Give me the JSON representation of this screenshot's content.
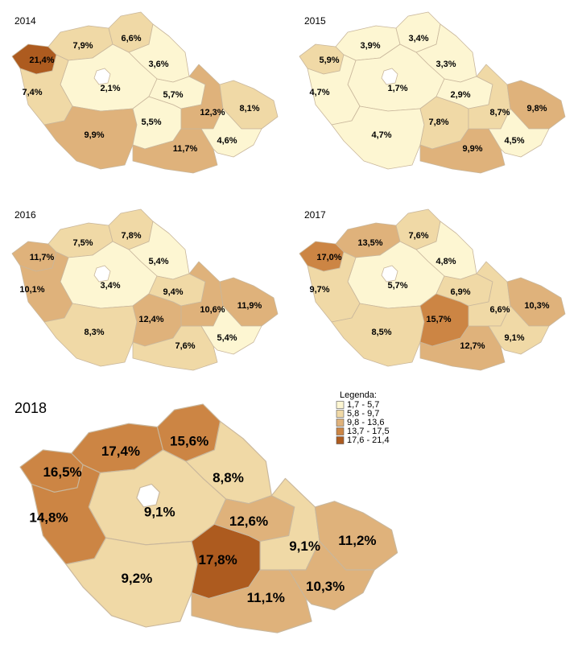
{
  "maps": [
    {
      "year": "2014",
      "regions": [
        {
          "label": "21,4%",
          "color": "#ad5b1f"
        },
        {
          "label": "7,9%",
          "color": "#f0d9a6"
        },
        {
          "label": "6,6%",
          "color": "#f0d9a6"
        },
        {
          "label": "3,6%",
          "color": "#fdf6d2"
        },
        {
          "label": "2,1%",
          "color": "#fdf6d2"
        },
        {
          "label": "7,4%",
          "color": "#f0d9a6"
        },
        {
          "label": "9,9%",
          "color": "#dfb27b"
        },
        {
          "label": "5,5%",
          "color": "#fdf6d2"
        },
        {
          "label": "5,7%",
          "color": "#fdf6d2"
        },
        {
          "label": "11,7%",
          "color": "#dfb27b"
        },
        {
          "label": "12,3%",
          "color": "#dfb27b"
        },
        {
          "label": "8,1%",
          "color": "#f0d9a6"
        },
        {
          "label": "4,6%",
          "color": "#fdf6d2"
        }
      ]
    },
    {
      "year": "2015",
      "regions": [
        {
          "label": "5,9%",
          "color": "#f0d9a6"
        },
        {
          "label": "3,9%",
          "color": "#fdf6d2"
        },
        {
          "label": "3,4%",
          "color": "#fdf6d2"
        },
        {
          "label": "3,3%",
          "color": "#fdf6d2"
        },
        {
          "label": "1,7%",
          "color": "#fdf6d2"
        },
        {
          "label": "4,7%",
          "color": "#fdf6d2"
        },
        {
          "label": "4,7%",
          "color": "#fdf6d2"
        },
        {
          "label": "7,8%",
          "color": "#f0d9a6"
        },
        {
          "label": "2,9%",
          "color": "#fdf6d2"
        },
        {
          "label": "9,9%",
          "color": "#dfb27b"
        },
        {
          "label": "8,7%",
          "color": "#f0d9a6"
        },
        {
          "label": "9,8%",
          "color": "#dfb27b"
        },
        {
          "label": "4,5%",
          "color": "#fdf6d2"
        }
      ]
    },
    {
      "year": "2016",
      "regions": [
        {
          "label": "11,7%",
          "color": "#dfb27b"
        },
        {
          "label": "7,5%",
          "color": "#f0d9a6"
        },
        {
          "label": "7,8%",
          "color": "#f0d9a6"
        },
        {
          "label": "5,4%",
          "color": "#fdf6d2"
        },
        {
          "label": "3,4%",
          "color": "#fdf6d2"
        },
        {
          "label": "10,1%",
          "color": "#dfb27b"
        },
        {
          "label": "8,3%",
          "color": "#f0d9a6"
        },
        {
          "label": "12,4%",
          "color": "#dfb27b"
        },
        {
          "label": "9,4%",
          "color": "#f0d9a6"
        },
        {
          "label": "7,6%",
          "color": "#f0d9a6"
        },
        {
          "label": "10,6%",
          "color": "#dfb27b"
        },
        {
          "label": "11,9%",
          "color": "#dfb27b"
        },
        {
          "label": "5,4%",
          "color": "#fdf6d2"
        }
      ]
    },
    {
      "year": "2017",
      "regions": [
        {
          "label": "17,0%",
          "color": "#cc8544"
        },
        {
          "label": "13,5%",
          "color": "#dfb27b"
        },
        {
          "label": "7,6%",
          "color": "#f0d9a6"
        },
        {
          "label": "4,8%",
          "color": "#fdf6d2"
        },
        {
          "label": "5,7%",
          "color": "#fdf6d2"
        },
        {
          "label": "9,7%",
          "color": "#f0d9a6"
        },
        {
          "label": "8,5%",
          "color": "#f0d9a6"
        },
        {
          "label": "15,7%",
          "color": "#cc8544"
        },
        {
          "label": "6,9%",
          "color": "#f0d9a6"
        },
        {
          "label": "12,7%",
          "color": "#dfb27b"
        },
        {
          "label": "6,6%",
          "color": "#f0d9a6"
        },
        {
          "label": "10,3%",
          "color": "#dfb27b"
        },
        {
          "label": "9,1%",
          "color": "#f0d9a6"
        }
      ]
    },
    {
      "year": "2018",
      "regions": [
        {
          "label": "16,5%",
          "color": "#cc8544"
        },
        {
          "label": "17,4%",
          "color": "#cc8544"
        },
        {
          "label": "15,6%",
          "color": "#cc8544"
        },
        {
          "label": "8,8%",
          "color": "#f0d9a6"
        },
        {
          "label": "9,1%",
          "color": "#f0d9a6"
        },
        {
          "label": "14,8%",
          "color": "#cc8544"
        },
        {
          "label": "9,2%",
          "color": "#f0d9a6"
        },
        {
          "label": "17,8%",
          "color": "#ad5b1f"
        },
        {
          "label": "12,6%",
          "color": "#dfb27b"
        },
        {
          "label": "11,1%",
          "color": "#dfb27b"
        },
        {
          "label": "9,1%",
          "color": "#f0d9a6"
        },
        {
          "label": "11,2%",
          "color": "#dfb27b"
        },
        {
          "label": "10,3%",
          "color": "#dfb27b"
        }
      ]
    }
  ],
  "legend": {
    "title": "Legenda:",
    "items": [
      {
        "label": "1,7 - 5,7",
        "color": "#fdf6d2"
      },
      {
        "label": "5,8 - 9,7",
        "color": "#f0d9a6"
      },
      {
        "label": "9,8 - 13,6",
        "color": "#dfb27b"
      },
      {
        "label": "13,7 - 17,5",
        "color": "#cc8544"
      },
      {
        "label": "17,6 - 21,4",
        "color": "#ad5b1f"
      }
    ]
  }
}
